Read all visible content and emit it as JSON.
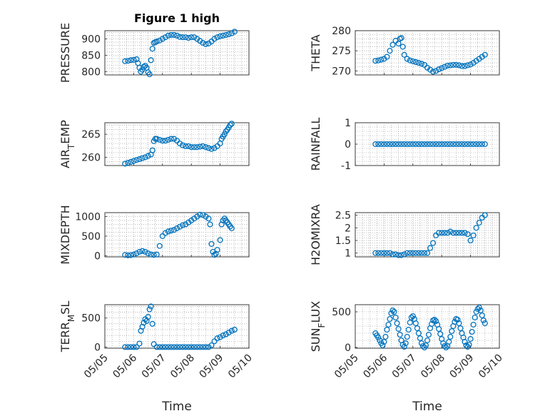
{
  "figure": {
    "title": "Figure 1 high"
  },
  "colors": {
    "marker": "#0072BD",
    "axis": "#262626",
    "grid": "#8c8c8c",
    "background": "#ffffff"
  },
  "chart_data": [
    {
      "type": "scatter",
      "ylabel": "PRESSURE",
      "xlabel": "",
      "title": "Figure 1 high",
      "xlim": [
        "05/05",
        "05/10"
      ],
      "ylim": [
        790,
        925
      ],
      "yticks": [
        800,
        850,
        900
      ],
      "xticks": [
        "05/05",
        "05/06",
        "05/07",
        "05/08",
        "05/09",
        "05/10"
      ],
      "grid": true,
      "x_days": [
        0.7,
        0.8,
        0.9,
        1.0,
        1.1,
        1.15,
        1.2,
        1.25,
        1.3,
        1.35,
        1.4,
        1.45,
        1.5,
        1.55,
        1.6,
        1.65,
        1.7,
        1.75,
        1.8,
        1.9,
        2.0,
        2.1,
        2.2,
        2.3,
        2.4,
        2.5,
        2.6,
        2.7,
        2.8,
        2.9,
        3.0,
        3.1,
        3.2,
        3.3,
        3.4,
        3.5,
        3.6,
        3.7,
        3.8,
        3.9,
        4.0,
        4.1,
        4.2,
        4.3,
        4.4,
        4.5
      ],
      "values": [
        832,
        833,
        835,
        836,
        838,
        826,
        812,
        800,
        806,
        815,
        818,
        812,
        798,
        792,
        835,
        870,
        888,
        890,
        892,
        895,
        900,
        905,
        910,
        912,
        912,
        910,
        906,
        905,
        905,
        903,
        905,
        905,
        900,
        894,
        888,
        884,
        886,
        892,
        900,
        905,
        908,
        910,
        912,
        914,
        917,
        922
      ]
    },
    {
      "type": "scatter",
      "ylabel": "THETA",
      "xlabel": "",
      "xlim": [
        "05/05",
        "05/10"
      ],
      "ylim": [
        269,
        280
      ],
      "yticks": [
        270,
        275,
        280
      ],
      "xticks": [
        "05/05",
        "05/06",
        "05/07",
        "05/08",
        "05/09",
        "05/10"
      ],
      "grid": true,
      "x_days": [
        0.7,
        0.8,
        0.9,
        1.0,
        1.1,
        1.2,
        1.3,
        1.4,
        1.5,
        1.55,
        1.6,
        1.65,
        1.7,
        1.8,
        1.9,
        2.0,
        2.1,
        2.2,
        2.3,
        2.4,
        2.5,
        2.6,
        2.7,
        2.8,
        2.9,
        3.0,
        3.1,
        3.2,
        3.3,
        3.4,
        3.5,
        3.6,
        3.7,
        3.8,
        3.9,
        4.0,
        4.1,
        4.2,
        4.3,
        4.4,
        4.5
      ],
      "values": [
        272.5,
        272.6,
        272.8,
        273.0,
        273.5,
        275,
        276.5,
        277.5,
        276.8,
        278.0,
        278.2,
        276,
        274,
        273,
        272.6,
        272.4,
        272.2,
        272,
        271.8,
        271.5,
        270.8,
        270.3,
        269.8,
        270,
        270.4,
        270.7,
        271,
        271.3,
        271.4,
        271.5,
        271.5,
        271.4,
        271.2,
        271.2,
        271.4,
        271.6,
        272,
        272.5,
        273,
        273.5,
        274
      ]
    },
    {
      "type": "scatter",
      "ylabel": "AIR_TEMP",
      "xlabel": "",
      "xlim": [
        "05/05",
        "05/10"
      ],
      "ylim": [
        258.2,
        267.5
      ],
      "yticks": [
        260,
        265
      ],
      "xticks": [
        "05/05",
        "05/06",
        "05/07",
        "05/08",
        "05/09",
        "05/10"
      ],
      "grid": true,
      "x_days": [
        0.7,
        0.8,
        0.9,
        1.0,
        1.1,
        1.2,
        1.3,
        1.4,
        1.5,
        1.6,
        1.65,
        1.7,
        1.75,
        1.8,
        1.9,
        2.0,
        2.1,
        2.2,
        2.3,
        2.4,
        2.5,
        2.6,
        2.7,
        2.8,
        2.9,
        3.0,
        3.1,
        3.2,
        3.3,
        3.4,
        3.5,
        3.6,
        3.7,
        3.8,
        3.9,
        4.0,
        4.05,
        4.1,
        4.15,
        4.2,
        4.25,
        4.3,
        4.35,
        4.4
      ],
      "values": [
        258.6,
        258.8,
        259.0,
        259.2,
        259.4,
        259.6,
        259.8,
        260.0,
        260.3,
        260.6,
        261.5,
        263.5,
        264.0,
        264.0,
        263.8,
        263.6,
        263.6,
        263.8,
        264.0,
        264.0,
        263.6,
        263.0,
        262.6,
        262.4,
        262.4,
        262.2,
        262.2,
        262.2,
        262.3,
        262.4,
        262.2,
        262.0,
        261.8,
        262.0,
        262.4,
        263.0,
        264.0,
        264.5,
        265.0,
        265.6,
        266.0,
        266.5,
        267.0,
        267.3
      ]
    },
    {
      "type": "scatter",
      "ylabel": "RAINFALL",
      "xlabel": "",
      "xlim": [
        "05/05",
        "05/10"
      ],
      "ylim": [
        -1,
        1
      ],
      "yticks": [
        -1,
        0,
        1
      ],
      "xticks": [
        "05/05",
        "05/06",
        "05/07",
        "05/08",
        "05/09",
        "05/10"
      ],
      "grid": true,
      "x_days": [
        0.7,
        0.8,
        0.9,
        1.0,
        1.1,
        1.2,
        1.3,
        1.4,
        1.5,
        1.6,
        1.7,
        1.8,
        1.9,
        2.0,
        2.1,
        2.2,
        2.3,
        2.4,
        2.5,
        2.6,
        2.7,
        2.8,
        2.9,
        3.0,
        3.1,
        3.2,
        3.3,
        3.4,
        3.5,
        3.6,
        3.7,
        3.8,
        3.9,
        4.0,
        4.1,
        4.2,
        4.3,
        4.4,
        4.5
      ],
      "values": [
        0,
        0,
        0,
        0,
        0,
        0,
        0,
        0,
        0,
        0,
        0,
        0,
        0,
        0,
        0,
        0,
        0,
        0,
        0,
        0,
        0,
        0,
        0,
        0,
        0,
        0,
        0,
        0,
        0,
        0,
        0,
        0,
        0,
        0,
        0,
        0,
        0,
        0,
        0
      ]
    },
    {
      "type": "scatter",
      "ylabel": "MIXDEPTH",
      "xlabel": "",
      "xlim": [
        "05/05",
        "05/10"
      ],
      "ylim": [
        -30,
        1100
      ],
      "yticks": [
        0,
        500,
        1000
      ],
      "xticks": [
        "05/05",
        "05/06",
        "05/07",
        "05/08",
        "05/09",
        "05/10"
      ],
      "grid": true,
      "x_days": [
        0.7,
        0.8,
        0.9,
        1.0,
        1.1,
        1.2,
        1.3,
        1.4,
        1.5,
        1.6,
        1.7,
        1.8,
        1.9,
        2.0,
        2.1,
        2.2,
        2.3,
        2.4,
        2.5,
        2.6,
        2.7,
        2.8,
        2.9,
        3.0,
        3.1,
        3.2,
        3.3,
        3.4,
        3.5,
        3.6,
        3.65,
        3.7,
        3.75,
        3.8,
        3.85,
        3.9,
        4.0,
        4.05,
        4.1,
        4.15,
        4.2,
        4.25,
        4.3,
        4.35,
        4.4
      ],
      "values": [
        20,
        10,
        15,
        30,
        60,
        100,
        120,
        100,
        60,
        30,
        20,
        30,
        250,
        500,
        580,
        620,
        640,
        660,
        700,
        740,
        780,
        800,
        850,
        900,
        950,
        1000,
        1050,
        1040,
        1000,
        950,
        800,
        300,
        100,
        20,
        50,
        150,
        400,
        800,
        900,
        950,
        900,
        850,
        800,
        750,
        700
      ]
    },
    {
      "type": "scatter",
      "ylabel": "H2OMIXRA",
      "xlabel": "",
      "xlim": [
        "05/05",
        "05/10"
      ],
      "ylim": [
        0.85,
        2.6
      ],
      "yticks": [
        1,
        1.5,
        2,
        2.5
      ],
      "xticks": [
        "05/05",
        "05/06",
        "05/07",
        "05/08",
        "05/09",
        "05/10"
      ],
      "grid": true,
      "x_days": [
        0.7,
        0.8,
        0.9,
        1.0,
        1.1,
        1.2,
        1.3,
        1.4,
        1.5,
        1.6,
        1.7,
        1.8,
        1.9,
        2.0,
        2.1,
        2.2,
        2.3,
        2.4,
        2.5,
        2.6,
        2.7,
        2.8,
        2.9,
        3.0,
        3.1,
        3.2,
        3.3,
        3.4,
        3.5,
        3.6,
        3.7,
        3.8,
        3.9,
        4.0,
        4.1,
        4.2,
        4.3,
        4.4,
        4.5
      ],
      "values": [
        1.0,
        1.0,
        1.0,
        1.0,
        1.0,
        1.0,
        0.95,
        0.95,
        0.92,
        0.92,
        0.95,
        1.0,
        1.0,
        1.0,
        1.0,
        1.0,
        1.0,
        1.0,
        1.0,
        1.2,
        1.4,
        1.7,
        1.8,
        1.8,
        1.8,
        1.8,
        1.85,
        1.8,
        1.8,
        1.8,
        1.8,
        1.8,
        1.75,
        1.5,
        1.7,
        2.0,
        2.2,
        2.4,
        2.5
      ]
    },
    {
      "type": "scatter",
      "ylabel": "TERR_MSL",
      "xlabel": "Time",
      "xlim": [
        "05/05",
        "05/10"
      ],
      "ylim": [
        -20,
        730
      ],
      "yticks": [
        0,
        500
      ],
      "xticks": [
        "05/05",
        "05/06",
        "05/07",
        "05/08",
        "05/09",
        "05/10"
      ],
      "grid": true,
      "x_days": [
        0.7,
        0.8,
        0.9,
        1.0,
        1.1,
        1.2,
        1.25,
        1.3,
        1.35,
        1.4,
        1.45,
        1.5,
        1.55,
        1.6,
        1.65,
        1.7,
        1.8,
        1.9,
        2.0,
        2.1,
        2.2,
        2.3,
        2.4,
        2.5,
        2.6,
        2.7,
        2.8,
        2.9,
        3.0,
        3.1,
        3.2,
        3.3,
        3.4,
        3.5,
        3.6,
        3.7,
        3.8,
        3.9,
        4.0,
        4.1,
        4.2,
        4.3,
        4.4,
        4.5
      ],
      "values": [
        0,
        0,
        0,
        0,
        0,
        60,
        280,
        350,
        420,
        480,
        450,
        520,
        650,
        700,
        400,
        50,
        0,
        0,
        0,
        0,
        0,
        0,
        0,
        0,
        0,
        0,
        0,
        0,
        0,
        0,
        0,
        0,
        0,
        0,
        0,
        30,
        100,
        150,
        170,
        200,
        220,
        250,
        280,
        300
      ]
    },
    {
      "type": "scatter",
      "ylabel": "SUN_FLUX",
      "xlabel": "Time",
      "xlim": [
        "05/05",
        "05/10"
      ],
      "ylim": [
        -10,
        600
      ],
      "yticks": [
        0,
        500
      ],
      "xticks": [
        "05/05",
        "05/06",
        "05/07",
        "05/08",
        "05/09",
        "05/10"
      ],
      "grid": true,
      "x_days": [
        0.7,
        0.75,
        0.8,
        0.85,
        0.9,
        0.95,
        1.0,
        1.05,
        1.1,
        1.15,
        1.2,
        1.25,
        1.3,
        1.35,
        1.4,
        1.45,
        1.5,
        1.55,
        1.6,
        1.65,
        1.7,
        1.75,
        1.8,
        1.85,
        1.9,
        1.95,
        2.0,
        2.05,
        2.1,
        2.15,
        2.2,
        2.25,
        2.3,
        2.35,
        2.4,
        2.45,
        2.5,
        2.55,
        2.6,
        2.65,
        2.7,
        2.75,
        2.8,
        2.85,
        2.9,
        2.95,
        3.0,
        3.05,
        3.1,
        3.15,
        3.2,
        3.25,
        3.3,
        3.35,
        3.4,
        3.45,
        3.5,
        3.55,
        3.6,
        3.65,
        3.7,
        3.75,
        3.8,
        3.85,
        3.9,
        3.95,
        4.0,
        4.05,
        4.1,
        4.15,
        4.2,
        4.25,
        4.3,
        4.35,
        4.4,
        4.45,
        4.5
      ],
      "values": [
        200,
        170,
        140,
        100,
        60,
        30,
        80,
        150,
        250,
        320,
        400,
        480,
        520,
        500,
        420,
        340,
        260,
        180,
        100,
        40,
        10,
        60,
        150,
        250,
        350,
        420,
        440,
        400,
        340,
        270,
        200,
        130,
        60,
        20,
        0,
        30,
        100,
        180,
        270,
        330,
        380,
        390,
        370,
        320,
        260,
        190,
        120,
        60,
        20,
        0,
        20,
        80,
        150,
        230,
        300,
        360,
        400,
        390,
        340,
        270,
        200,
        140,
        80,
        30,
        10,
        40,
        120,
        220,
        320,
        420,
        500,
        540,
        560,
        520,
        450,
        380,
        340
      ]
    }
  ]
}
